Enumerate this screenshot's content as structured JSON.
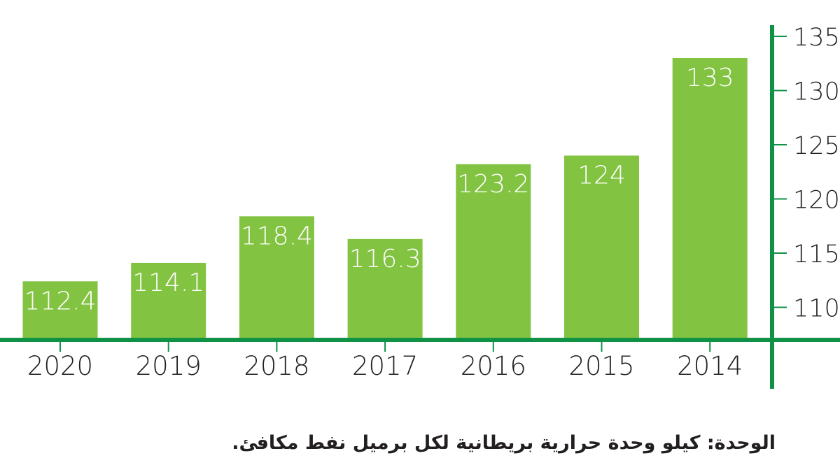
{
  "chart_data": {
    "type": "bar",
    "categories": [
      "2020",
      "2019",
      "2018",
      "2017",
      "2016",
      "2015",
      "2014"
    ],
    "values": [
      112.4,
      114.1,
      118.4,
      116.3,
      123.2,
      124,
      133
    ],
    "data_labels": [
      "112.4",
      "114.1",
      "118.4",
      "116.3",
      "123.2",
      "124",
      "133"
    ],
    "y_ticks": [
      "110",
      "115",
      "120",
      "125",
      "130",
      "135"
    ],
    "ylim": [
      107,
      135
    ],
    "y_axis_position": "right",
    "grid": false,
    "colors": {
      "bar": "#82c341",
      "axis": "#0f9146",
      "text": "#231f20",
      "bar_label": "#ffffff"
    }
  },
  "footnote": "الوحدة: كيلو وحدة حرارية بريطانية لكل برميل نفط مكافئ."
}
